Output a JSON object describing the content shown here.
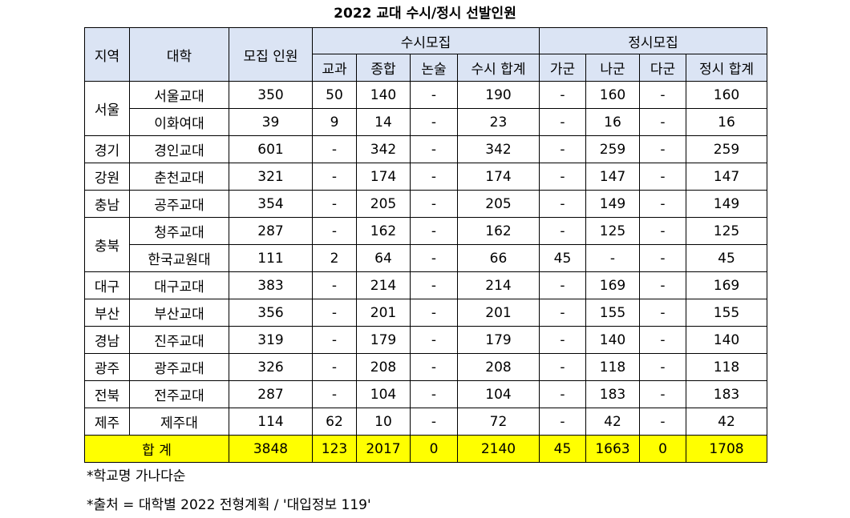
{
  "title": "2022 교대 수시/정시 선발인원",
  "headers": {
    "region": "지역",
    "university": "대학",
    "quota": "모집 인원",
    "susi_group": "수시모집",
    "jeongsi_group": "정시모집",
    "susi_cols": [
      "교과",
      "종합",
      "논술",
      "수시 합계"
    ],
    "jeongsi_cols": [
      "가군",
      "나군",
      "다군",
      "정시 합계"
    ]
  },
  "groups": [
    {
      "region": "서울",
      "rows": [
        {
          "univ": "서울교대",
          "quota": "350",
          "s1": "50",
          "s2": "140",
          "s3": "-",
          "s_total": "190",
          "j1": "-",
          "j2": "160",
          "j3": "-",
          "j_total": "160"
        },
        {
          "univ": "이화여대",
          "quota": "39",
          "s1": "9",
          "s2": "14",
          "s3": "-",
          "s_total": "23",
          "j1": "-",
          "j2": "16",
          "j3": "-",
          "j_total": "16"
        }
      ]
    },
    {
      "region": "경기",
      "rows": [
        {
          "univ": "경인교대",
          "quota": "601",
          "s1": "-",
          "s2": "342",
          "s3": "-",
          "s_total": "342",
          "j1": "-",
          "j2": "259",
          "j3": "-",
          "j_total": "259"
        }
      ]
    },
    {
      "region": "강원",
      "rows": [
        {
          "univ": "춘천교대",
          "quota": "321",
          "s1": "-",
          "s2": "174",
          "s3": "-",
          "s_total": "174",
          "j1": "-",
          "j2": "147",
          "j3": "-",
          "j_total": "147"
        }
      ]
    },
    {
      "region": "충남",
      "rows": [
        {
          "univ": "공주교대",
          "quota": "354",
          "s1": "-",
          "s2": "205",
          "s3": "-",
          "s_total": "205",
          "j1": "-",
          "j2": "149",
          "j3": "-",
          "j_total": "149"
        }
      ]
    },
    {
      "region": "충북",
      "rows": [
        {
          "univ": "청주교대",
          "quota": "287",
          "s1": "-",
          "s2": "162",
          "s3": "-",
          "s_total": "162",
          "j1": "-",
          "j2": "125",
          "j3": "-",
          "j_total": "125"
        },
        {
          "univ": "한국교원대",
          "quota": "111",
          "s1": "2",
          "s2": "64",
          "s3": "-",
          "s_total": "66",
          "j1": "45",
          "j2": "-",
          "j3": "-",
          "j_total": "45"
        }
      ]
    },
    {
      "region": "대구",
      "rows": [
        {
          "univ": "대구교대",
          "quota": "383",
          "s1": "-",
          "s2": "214",
          "s3": "-",
          "s_total": "214",
          "j1": "-",
          "j2": "169",
          "j3": "-",
          "j_total": "169"
        }
      ]
    },
    {
      "region": "부산",
      "rows": [
        {
          "univ": "부산교대",
          "quota": "356",
          "s1": "-",
          "s2": "201",
          "s3": "-",
          "s_total": "201",
          "j1": "-",
          "j2": "155",
          "j3": "-",
          "j_total": "155"
        }
      ]
    },
    {
      "region": "경남",
      "rows": [
        {
          "univ": "진주교대",
          "quota": "319",
          "s1": "-",
          "s2": "179",
          "s3": "-",
          "s_total": "179",
          "j1": "-",
          "j2": "140",
          "j3": "-",
          "j_total": "140"
        }
      ]
    },
    {
      "region": "광주",
      "rows": [
        {
          "univ": "광주교대",
          "quota": "326",
          "s1": "-",
          "s2": "208",
          "s3": "-",
          "s_total": "208",
          "j1": "-",
          "j2": "118",
          "j3": "-",
          "j_total": "118"
        }
      ]
    },
    {
      "region": "전북",
      "rows": [
        {
          "univ": "전주교대",
          "quota": "287",
          "s1": "-",
          "s2": "104",
          "s3": "-",
          "s_total": "104",
          "j1": "-",
          "j2": "183",
          "j3": "-",
          "j_total": "183"
        }
      ]
    },
    {
      "region": "제주",
      "rows": [
        {
          "univ": "제주대",
          "quota": "114",
          "s1": "62",
          "s2": "10",
          "s3": "-",
          "s_total": "72",
          "j1": "-",
          "j2": "42",
          "j3": "-",
          "j_total": "42"
        }
      ]
    }
  ],
  "total": {
    "label": "합 계",
    "quota": "3848",
    "s1": "123",
    "s2": "2017",
    "s3": "0",
    "s_total": "2140",
    "j1": "45",
    "j2": "1663",
    "j3": "0",
    "j_total": "1708"
  },
  "notes": {
    "order": "*학교명 가나다순",
    "source": "*출처 = 대학별 2022 전형계획 / '대입정보 119'"
  },
  "colors": {
    "header_bg": "#dbe4f4",
    "total_bg": "#ffff00"
  }
}
